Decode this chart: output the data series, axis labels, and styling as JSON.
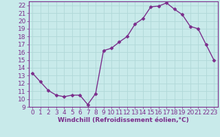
{
  "x": [
    0,
    1,
    2,
    3,
    4,
    5,
    6,
    7,
    8,
    9,
    10,
    11,
    12,
    13,
    14,
    15,
    16,
    17,
    18,
    19,
    20,
    21,
    22,
    23
  ],
  "y": [
    13.3,
    12.2,
    11.1,
    10.5,
    10.3,
    10.5,
    10.5,
    9.3,
    10.7,
    16.2,
    16.5,
    17.3,
    18.0,
    19.6,
    20.3,
    21.8,
    21.9,
    22.3,
    21.5,
    20.8,
    19.3,
    19.0,
    17.0,
    15.0
  ],
  "line_color": "#7b2d8b",
  "marker": "D",
  "marker_size": 2.5,
  "linewidth": 1.0,
  "xlabel": "Windchill (Refroidissement éolien,°C)",
  "ylim": [
    9,
    22.5
  ],
  "xlim": [
    -0.5,
    23.5
  ],
  "yticks": [
    9,
    10,
    11,
    12,
    13,
    14,
    15,
    16,
    17,
    18,
    19,
    20,
    21,
    22
  ],
  "xticks": [
    0,
    1,
    2,
    3,
    4,
    5,
    6,
    7,
    8,
    9,
    10,
    11,
    12,
    13,
    14,
    15,
    16,
    17,
    18,
    19,
    20,
    21,
    22,
    23
  ],
  "bg_color": "#c8eaea",
  "grid_color": "#b0d8d8",
  "tick_color": "#7b2d8b",
  "label_color": "#7b2d8b",
  "font_size": 6.5
}
